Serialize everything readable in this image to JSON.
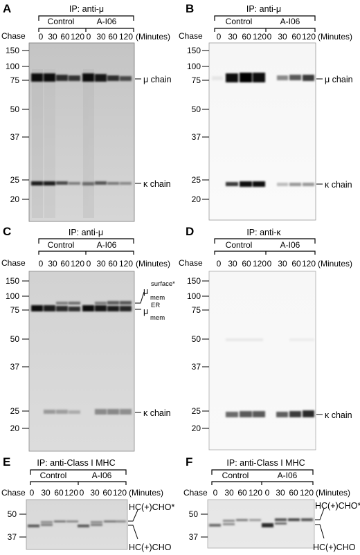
{
  "figure": {
    "panels": [
      {
        "id": "A",
        "label": "A",
        "ip": "IP: anti-μ",
        "groups": [
          "Control",
          "A-I06"
        ],
        "lanes": [
          "0",
          "30",
          "60",
          "120",
          "0",
          "30",
          "60",
          "120"
        ],
        "chase_label": "Chase",
        "unit_label": "(Minutes)",
        "markers": [
          "150",
          "100",
          "75",
          "50",
          "37",
          "25",
          "20"
        ],
        "annotations": [
          "μ chain",
          "κ chain"
        ]
      },
      {
        "id": "B",
        "label": "B",
        "ip": "IP: anti-μ",
        "groups": [
          "Control",
          "A-I06"
        ],
        "lanes": [
          "0",
          "30",
          "60",
          "120",
          "0",
          "30",
          "60",
          "120"
        ],
        "chase_label": "Chase",
        "unit_label": "(Minutes)",
        "markers": [
          "150",
          "100",
          "75",
          "50",
          "37",
          "25",
          "20"
        ],
        "annotations": [
          "μ chain",
          "κ chain"
        ]
      },
      {
        "id": "C",
        "label": "C",
        "ip": "IP: anti-μ",
        "groups": [
          "Control",
          "A-I06"
        ],
        "lanes": [
          "0",
          "30",
          "60",
          "120",
          "0",
          "30",
          "60",
          "120"
        ],
        "chase_label": "Chase",
        "unit_label": "(Minutes)",
        "markers": [
          "150",
          "100",
          "75",
          "50",
          "37",
          "25",
          "20"
        ],
        "annotations": [
          "μ",
          "surface*",
          "mem",
          "μ",
          "ER",
          "mem",
          "κ chain"
        ]
      },
      {
        "id": "D",
        "label": "D",
        "ip": "IP: anti-κ",
        "groups": [
          "Control",
          "A-I06"
        ],
        "lanes": [
          "0",
          "30",
          "60",
          "120",
          "0",
          "30",
          "60",
          "120"
        ],
        "chase_label": "Chase",
        "unit_label": "(Minutes)",
        "markers": [
          "150",
          "100",
          "75",
          "50",
          "37",
          "25",
          "20"
        ],
        "annotations": [
          "κ chain"
        ]
      },
      {
        "id": "E",
        "label": "E",
        "ip": "IP: anti-Class I MHC",
        "groups": [
          "Control",
          "A-I06"
        ],
        "lanes": [
          "0",
          "30",
          "60",
          "120",
          "0",
          "30",
          "60",
          "120"
        ],
        "chase_label": "Chase",
        "unit_label": "(Minutes)",
        "markers": [
          "50",
          "37"
        ],
        "annotations": [
          "HC(+)CHO*",
          "HC(+)CHO"
        ]
      },
      {
        "id": "F",
        "label": "F",
        "ip": "IP: anti-Class I MHC",
        "groups": [
          "Control",
          "A-I06"
        ],
        "lanes": [
          "0",
          "30",
          "60",
          "120",
          "0",
          "30",
          "60",
          "120"
        ],
        "chase_label": "Chase",
        "unit_label": "(Minutes)",
        "markers": [
          "50",
          "37"
        ],
        "annotations": [
          "HC(+)CHO*",
          "HC(+)CHO"
        ]
      }
    ]
  }
}
